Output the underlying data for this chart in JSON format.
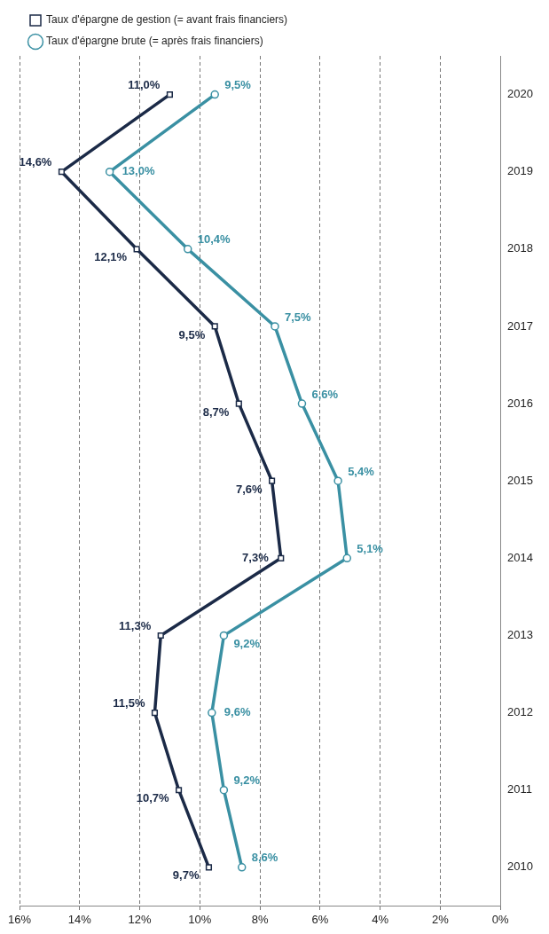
{
  "chart_data": {
    "type": "line",
    "categories": [
      "2020",
      "2019",
      "2018",
      "2017",
      "2016",
      "2015",
      "2014",
      "2013",
      "2012",
      "2011",
      "2010"
    ],
    "series": [
      {
        "name": "Taux d'épargne de gestion (= avant frais financiers)",
        "color": "#1b2a47",
        "marker": "square",
        "values": [
          11.0,
          14.6,
          12.1,
          9.5,
          8.7,
          7.6,
          7.3,
          11.3,
          11.5,
          10.7,
          9.7
        ],
        "value_labels": [
          "11,0%",
          "14,6%",
          "12,1%",
          "9,5%",
          "8,7%",
          "7,6%",
          "7,3%",
          "11,3%",
          "11,5%",
          "10,7%",
          "9,7%"
        ]
      },
      {
        "name": "Taux d'épargne brute (= après frais financiers)",
        "color": "#3a90a3",
        "marker": "circle",
        "values": [
          9.5,
          13.0,
          10.4,
          7.5,
          6.6,
          5.4,
          5.1,
          9.2,
          9.6,
          9.2,
          8.6
        ],
        "value_labels": [
          "9,5%",
          "13,0%",
          "10,4%",
          "7,5%",
          "6,6%",
          "5,4%",
          "5,1%",
          "9,2%",
          "9,6%",
          "9,2%",
          "8,6%"
        ]
      }
    ],
    "orientation": "horizontal",
    "xlim": [
      16,
      0
    ],
    "xticks": [
      {
        "value": 0,
        "label": "0%"
      },
      {
        "value": 2,
        "label": "2%"
      },
      {
        "value": 4,
        "label": "4%"
      },
      {
        "value": 6,
        "label": "6%"
      },
      {
        "value": 8,
        "label": "8%"
      },
      {
        "value": 10,
        "label": "10%"
      },
      {
        "value": 12,
        "label": "12%"
      },
      {
        "value": 14,
        "label": "14%"
      },
      {
        "value": 16,
        "label": "16%"
      }
    ],
    "grid": "x",
    "legend": "top",
    "line_style": "solid"
  }
}
